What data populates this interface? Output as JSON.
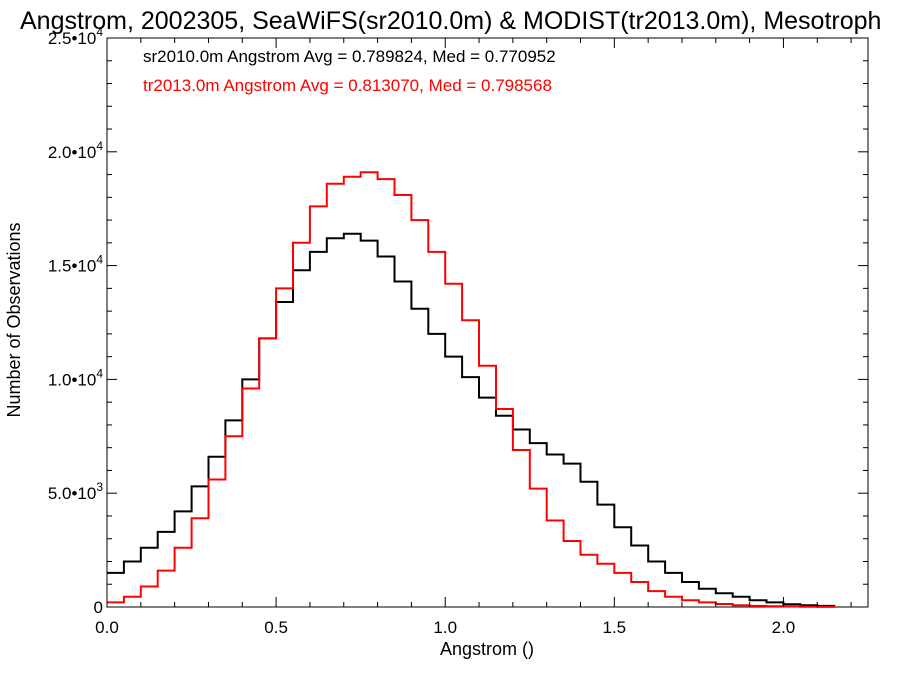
{
  "chart_data": {
    "type": "line",
    "style": "step-histogram",
    "title": "Angstrom, 2002305, SeaWiFS(sr2010.0m) & MODIST(tr2013.0m), Mesotroph",
    "xlabel": "Angstrom ()",
    "ylabel": "Number of Observations",
    "xlim": [
      0.0,
      2.25
    ],
    "ylim": [
      0,
      25000
    ],
    "grid": false,
    "x_ticks": [
      {
        "value": 0.0,
        "label": "0.0"
      },
      {
        "value": 0.5,
        "label": "0.5"
      },
      {
        "value": 1.0,
        "label": "1.0"
      },
      {
        "value": 1.5,
        "label": "1.5"
      },
      {
        "value": 2.0,
        "label": "2.0"
      }
    ],
    "y_ticks": [
      {
        "value": 0,
        "mantissa": "0",
        "exponent": ""
      },
      {
        "value": 5000,
        "mantissa": "5.0•10",
        "exponent": "3"
      },
      {
        "value": 10000,
        "mantissa": "1.0•10",
        "exponent": "4"
      },
      {
        "value": 15000,
        "mantissa": "1.5•10",
        "exponent": "4"
      },
      {
        "value": 20000,
        "mantissa": "2.0•10",
        "exponent": "4"
      },
      {
        "value": 25000,
        "mantissa": "2.5•10",
        "exponent": "4"
      }
    ],
    "annotations": [
      {
        "text": "sr2010.0m Angstrom Avg = 0.789824, Med = 0.770952",
        "color": "#000000"
      },
      {
        "text": "tr2013.0m Angstrom Avg = 0.813070, Med = 0.798568",
        "color": "#ff0000"
      }
    ],
    "series": [
      {
        "name": "sr2010.0m",
        "color": "#000000",
        "x": [
          0.0,
          0.05,
          0.1,
          0.15,
          0.2,
          0.25,
          0.3,
          0.35,
          0.4,
          0.45,
          0.5,
          0.55,
          0.6,
          0.65,
          0.7,
          0.75,
          0.8,
          0.85,
          0.9,
          0.95,
          1.0,
          1.05,
          1.1,
          1.15,
          1.2,
          1.25,
          1.3,
          1.35,
          1.4,
          1.45,
          1.5,
          1.55,
          1.6,
          1.65,
          1.7,
          1.75,
          1.8,
          1.85,
          1.9,
          1.95,
          2.0,
          2.05,
          2.1,
          2.15
        ],
        "y": [
          1500,
          2000,
          2600,
          3300,
          4200,
          5300,
          6600,
          8200,
          10000,
          11800,
          13400,
          14800,
          15600,
          16200,
          16400,
          16100,
          15400,
          14300,
          13100,
          12000,
          11000,
          10100,
          9200,
          8400,
          7800,
          7200,
          6700,
          6300,
          5500,
          4500,
          3500,
          2700,
          2000,
          1500,
          1100,
          800,
          600,
          450,
          300,
          200,
          120,
          80,
          50,
          0
        ]
      },
      {
        "name": "tr2013.0m",
        "color": "#ff0000",
        "x": [
          0.0,
          0.05,
          0.1,
          0.15,
          0.2,
          0.25,
          0.3,
          0.35,
          0.4,
          0.45,
          0.5,
          0.55,
          0.6,
          0.65,
          0.7,
          0.75,
          0.8,
          0.85,
          0.9,
          0.95,
          1.0,
          1.05,
          1.1,
          1.15,
          1.2,
          1.25,
          1.3,
          1.35,
          1.4,
          1.45,
          1.5,
          1.55,
          1.6,
          1.65,
          1.7,
          1.75,
          1.8,
          1.85,
          1.9,
          1.95,
          2.0,
          2.05,
          2.1,
          2.15
        ],
        "y": [
          200,
          450,
          900,
          1600,
          2600,
          3900,
          5600,
          7500,
          9600,
          11800,
          14000,
          16000,
          17600,
          18600,
          18900,
          19100,
          18800,
          18100,
          17000,
          15600,
          14200,
          12600,
          10600,
          8700,
          6900,
          5200,
          3800,
          2900,
          2300,
          1900,
          1500,
          1100,
          700,
          450,
          300,
          200,
          130,
          80,
          50,
          30,
          20,
          10,
          5,
          0
        ]
      }
    ]
  }
}
